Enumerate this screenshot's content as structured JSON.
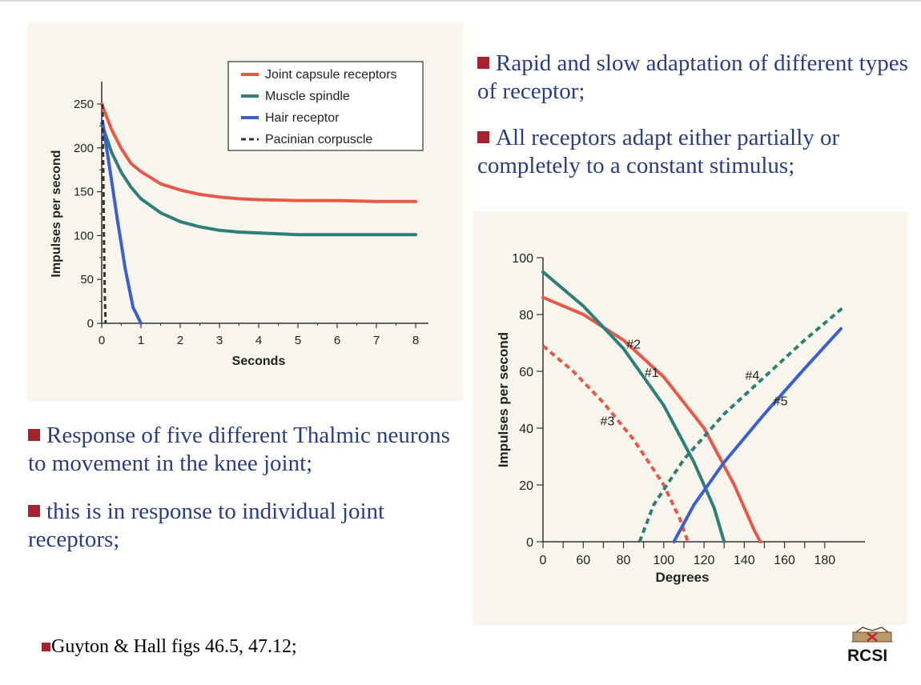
{
  "bullets": {
    "rapid": "Rapid and slow adaptation of different types of receptor;",
    "all": "All receptors adapt either partially or completely to a constant stimulus;",
    "response": "Response of five different Thalmic neurons to movement in the knee joint;",
    "individual": "this is in response to individual joint receptors;",
    "reference": "Guyton & Hall figs 46.5, 47.12;"
  },
  "logo": {
    "text": "RCSI"
  },
  "colors": {
    "red": "#e8584a",
    "teal": "#2f7f78",
    "blue": "#3b5fcf",
    "dark": "#333333",
    "bullet": "#a4232e",
    "text": "#2b3d7e"
  },
  "chart_data": [
    {
      "type": "line",
      "xlabel": "Seconds",
      "ylabel": "Impulses per second",
      "xlim": [
        0,
        8
      ],
      "ylim": [
        0,
        250
      ],
      "xticks": [
        "0",
        "1",
        "2",
        "3",
        "4",
        "5",
        "6",
        "7",
        "8"
      ],
      "yticks": [
        "0",
        "50",
        "100",
        "150",
        "200",
        "250"
      ],
      "legend_position": "top-right",
      "series": [
        {
          "name": "Joint capsule receptors",
          "color": "#e8584a",
          "dash": false,
          "x": [
            0,
            0.25,
            0.5,
            0.75,
            1,
            1.5,
            2,
            2.5,
            3,
            3.5,
            4,
            5,
            6,
            7,
            8
          ],
          "y": [
            250,
            221,
            199,
            182,
            173,
            159,
            152,
            147,
            144,
            142,
            141,
            140,
            140,
            139,
            139
          ]
        },
        {
          "name": "Muscle spindle",
          "color": "#2f7f78",
          "dash": false,
          "x": [
            0,
            0.25,
            0.5,
            0.75,
            1,
            1.5,
            2,
            2.5,
            3,
            3.5,
            4,
            5,
            6,
            7,
            8
          ],
          "y": [
            228,
            195,
            172,
            155,
            142,
            126,
            116,
            110,
            106,
            104,
            103,
            101,
            101,
            101,
            101
          ]
        },
        {
          "name": "Hair receptor",
          "color": "#3b5fcf",
          "dash": false,
          "x": [
            0.02,
            0.2,
            0.4,
            0.6,
            0.8,
            1.0
          ],
          "y": [
            230,
            178,
            118,
            62,
            18,
            0
          ]
        },
        {
          "name": "Pacinian corpuscle",
          "color": "#333333",
          "dash": true,
          "x": [
            0.02,
            0.04,
            0.06,
            0.08,
            0.1
          ],
          "y": [
            250,
            170,
            90,
            30,
            0
          ]
        }
      ]
    },
    {
      "type": "line",
      "xlabel": "Degrees",
      "ylabel": "Impulses per second",
      "xlim": [
        40,
        190
      ],
      "ylim": [
        0,
        100
      ],
      "xticks": [
        "0",
        "60",
        "80",
        "100",
        "120",
        "140",
        "160",
        "180"
      ],
      "yticks": [
        "0",
        "20",
        "40",
        "60",
        "80",
        "100"
      ],
      "series": [
        {
          "name": "#1",
          "color": "#e8584a",
          "dash": false,
          "x": [
            40,
            60,
            80,
            100,
            120,
            135,
            145,
            148
          ],
          "y": [
            86,
            80,
            71,
            58,
            40,
            20,
            4,
            0
          ]
        },
        {
          "name": "#2",
          "color": "#2f7f78",
          "dash": false,
          "x": [
            40,
            60,
            80,
            100,
            115,
            125,
            130
          ],
          "y": [
            95,
            83,
            68,
            48,
            28,
            12,
            0
          ]
        },
        {
          "name": "#3",
          "color": "#e8584a",
          "dash": true,
          "x": [
            40,
            55,
            70,
            85,
            100,
            108,
            112
          ],
          "y": [
            69,
            60,
            49,
            36,
            20,
            8,
            0
          ]
        },
        {
          "name": "#4",
          "color": "#2f7f78",
          "dash": true,
          "x": [
            88,
            95,
            110,
            130,
            150,
            170,
            190
          ],
          "y": [
            0,
            13,
            29,
            45,
            58,
            71,
            83
          ]
        },
        {
          "name": "#5",
          "color": "#3b5fcf",
          "dash": false,
          "x": [
            105,
            115,
            130,
            150,
            170,
            188
          ],
          "y": [
            0,
            13,
            28,
            45,
            61,
            75
          ]
        }
      ]
    }
  ]
}
